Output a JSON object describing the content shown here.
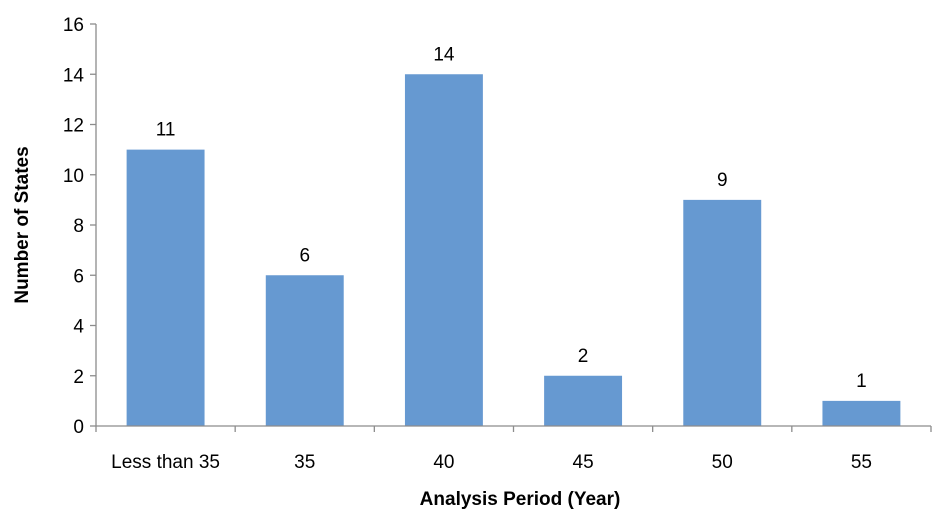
{
  "chart_data": {
    "type": "bar",
    "categories": [
      "Less than 35",
      "35",
      "40",
      "45",
      "50",
      "55"
    ],
    "values": [
      11,
      6,
      14,
      2,
      9,
      1
    ],
    "data_labels": [
      "11",
      "6",
      "14",
      "2",
      "9",
      "1"
    ],
    "title": "",
    "xlabel": "Analysis Period (Year)",
    "ylabel": "Number of States",
    "ylim": [
      0,
      16
    ],
    "yticks": [
      0,
      2,
      4,
      6,
      8,
      10,
      12,
      14,
      16
    ],
    "ytick_labels": [
      "0",
      "2",
      "4",
      "6",
      "8",
      "10",
      "12",
      "14",
      "16"
    ],
    "grid": false,
    "legend": "none",
    "bar_color": "#6699d1"
  }
}
